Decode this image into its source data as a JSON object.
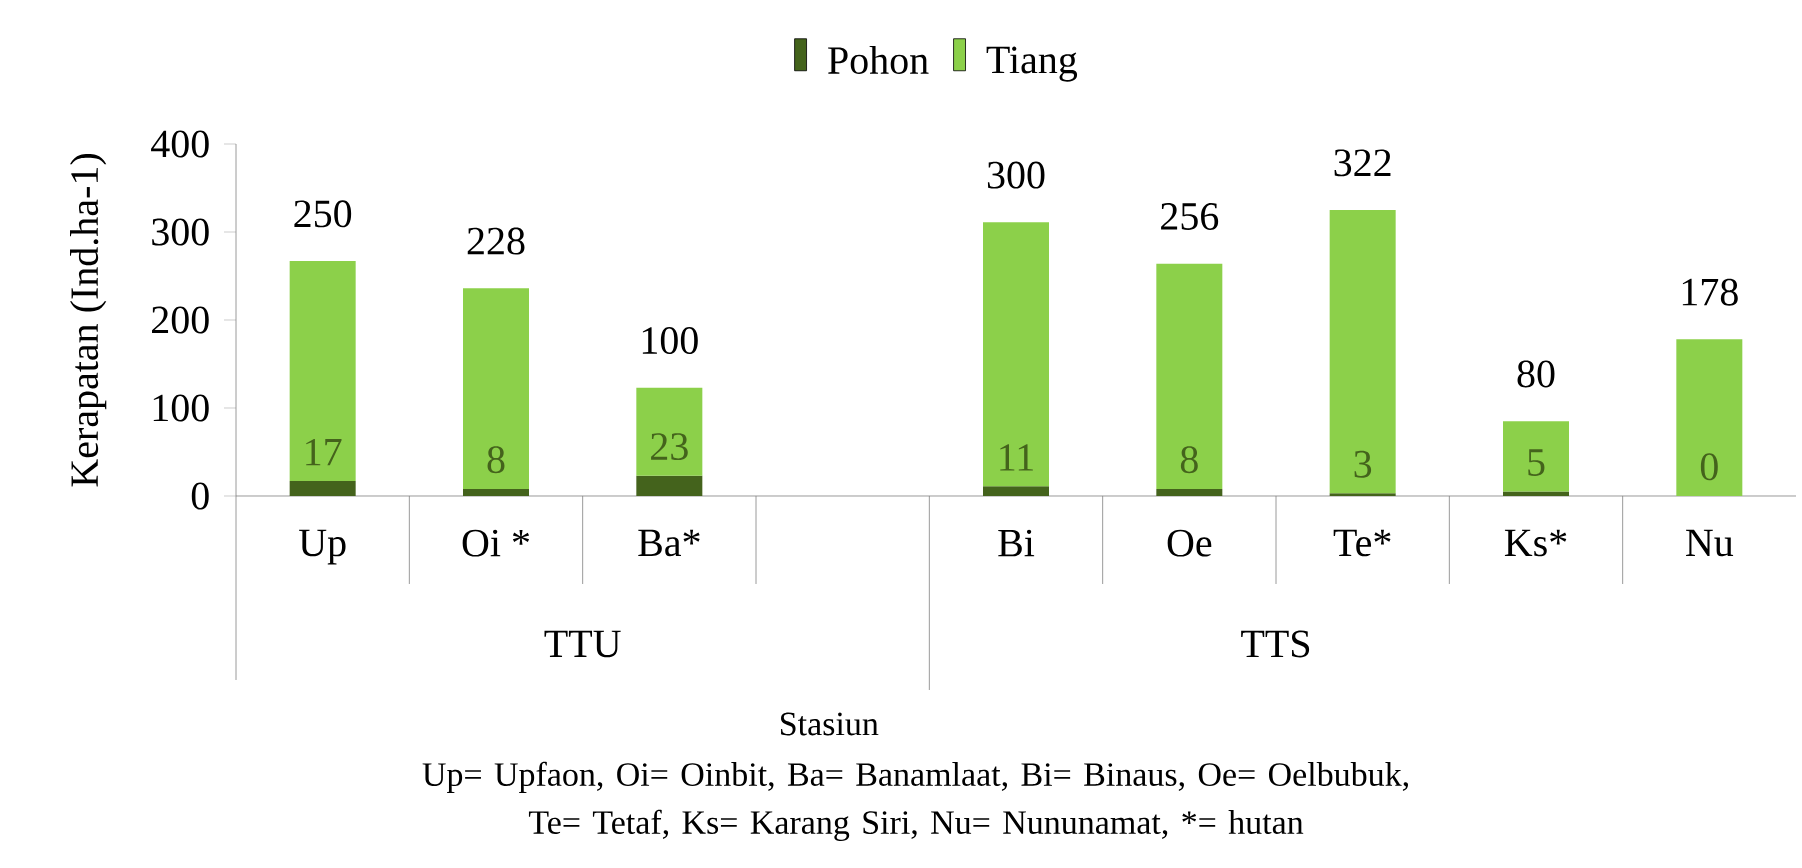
{
  "chart_data": {
    "type": "bar",
    "stacked": true,
    "xlabel": "Stasiun",
    "ylabel": "Kerapatan (Ind.ha-1)",
    "categories": [
      "Up",
      "Oi *",
      "Ba*",
      null,
      "Bi",
      "Oe",
      "Te*",
      "Ks*",
      "Nu"
    ],
    "series": [
      {
        "name": "Pohon",
        "color": "#44631c",
        "values": [
          17,
          8,
          23,
          null,
          11,
          8,
          3,
          5,
          0
        ]
      },
      {
        "name": "Tiang",
        "color": "#8cd04a",
        "values": [
          250,
          228,
          100,
          null,
          300,
          256,
          322,
          80,
          178
        ]
      }
    ],
    "ylim": [
      0,
      400
    ],
    "yticks": [
      0,
      100,
      200,
      300,
      400
    ],
    "grid": false,
    "legend": "top",
    "data_labels": true,
    "annotations": [
      "TTU",
      "TTS",
      "Up= Upfaon, Oi= Oinbit, Ba= Banamlaat, Bi= Binaus, Oe= Oelbubuk, Te= Tetaf, Ks= Karang Siri, Nu= Nununamat, *= hutan"
    ]
  }
}
